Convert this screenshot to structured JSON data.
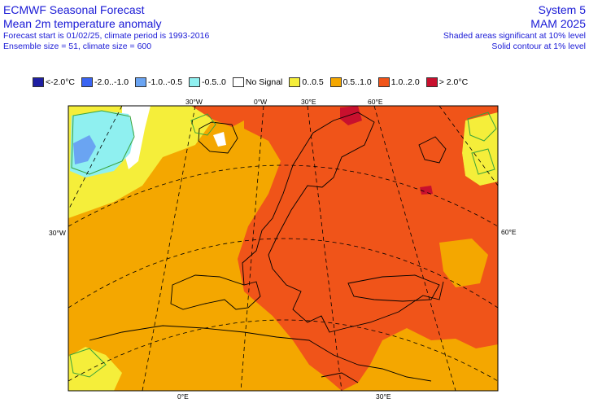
{
  "header": {
    "title": "ECMWF Seasonal Forecast",
    "subtitle": "Mean 2m temperature anomaly",
    "forecast_info": "Forecast start is 01/02/25, climate period is 1993-2016",
    "ensemble_info": "Ensemble size = 51, climate size = 600",
    "system": "System 5",
    "season": "MAM 2025",
    "note_shaded": "Shaded areas significant at 10% level",
    "note_contour": "Solid contour at 1% level"
  },
  "legend": [
    {
      "label": "<-2.0°C",
      "color": "#1f1fa3"
    },
    {
      "label": "-2.0..-1.0",
      "color": "#3a64f2"
    },
    {
      "label": "-1.0..-0.5",
      "color": "#6aa4f2"
    },
    {
      "label": "-0.5..0",
      "color": "#8ff0f0"
    },
    {
      "label": "No Signal",
      "color": "#ffffff"
    },
    {
      "label": "0..0.5",
      "color": "#f5ee3a"
    },
    {
      "label": "0.5..1.0",
      "color": "#f4a700"
    },
    {
      "label": "1.0..2.0",
      "color": "#f05419"
    },
    {
      "label": "> 2.0°C",
      "color": "#c8102e"
    }
  ],
  "grid_labels": {
    "top_30w": "30°W",
    "top_0w": "0°W",
    "top_30e": "30°E",
    "top_60e": "60°E",
    "left_30w": "30°W",
    "right_60e": "60°E",
    "bottom_0e": "0°E",
    "bottom_30e": "30°E"
  }
}
